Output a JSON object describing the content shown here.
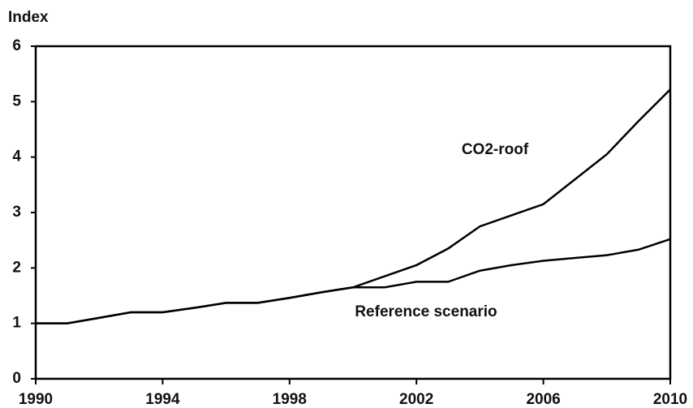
{
  "chart_data": {
    "type": "line",
    "y_label": "Index",
    "x": [
      1990,
      1991,
      1992,
      1993,
      1994,
      1995,
      1996,
      1997,
      1998,
      1999,
      2000,
      2001,
      2002,
      2003,
      2004,
      2005,
      2006,
      2007,
      2008,
      2009,
      2010
    ],
    "series": [
      {
        "name": "CO2-roof",
        "color": "#000000",
        "values": [
          1.0,
          1.0,
          1.1,
          1.2,
          1.2,
          1.28,
          1.37,
          1.37,
          1.46,
          1.56,
          1.65,
          1.85,
          2.05,
          2.35,
          2.75,
          2.95,
          3.15,
          3.6,
          4.05,
          4.65,
          5.22
        ]
      },
      {
        "name": "Reference scenario",
        "color": "#000000",
        "values": [
          1.0,
          1.0,
          1.1,
          1.2,
          1.2,
          1.28,
          1.37,
          1.37,
          1.46,
          1.56,
          1.65,
          1.65,
          1.75,
          1.75,
          1.95,
          2.05,
          2.13,
          2.18,
          2.23,
          2.33,
          2.52
        ]
      }
    ],
    "xlim": [
      1990,
      2010
    ],
    "xticks": [
      1990,
      1994,
      1998,
      2002,
      2006,
      2010
    ],
    "ylim": [
      0,
      6
    ],
    "yticks": [
      0,
      1,
      2,
      3,
      4,
      5,
      6
    ]
  }
}
